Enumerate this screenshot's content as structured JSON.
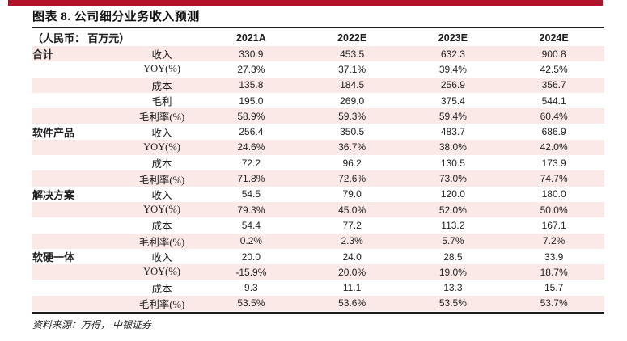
{
  "page": {
    "title": "图表 8. 公司细分业务收入预测",
    "source_note": "资料来源：万得，  中银证券"
  },
  "colors": {
    "accent_bar_red": "#b1122c",
    "row_stripe_pink": "#fbe9e7",
    "rule_black": "#1a1a1a",
    "text": "#1c1c1c"
  },
  "table": {
    "unit_label": "（人民币：  百万元）",
    "columns": [
      "2021A",
      "2022E",
      "2023E",
      "2024E"
    ],
    "groups": [
      {
        "name": "合计",
        "rows": [
          {
            "metric": "收入",
            "values": [
              "330.9",
              "453.5",
              "632.3",
              "900.8"
            ]
          },
          {
            "metric": "YOY(%)",
            "values": [
              "27.3%",
              "37.1%",
              "39.4%",
              "42.5%"
            ]
          },
          {
            "metric": "成本",
            "values": [
              "135.8",
              "184.5",
              "256.9",
              "356.7"
            ]
          },
          {
            "metric": "毛利",
            "values": [
              "195.0",
              "269.0",
              "375.4",
              "544.1"
            ]
          },
          {
            "metric": "毛利率(%)",
            "values": [
              "58.9%",
              "59.3%",
              "59.4%",
              "60.4%"
            ]
          }
        ]
      },
      {
        "name": "软件产品",
        "rows": [
          {
            "metric": "收入",
            "values": [
              "256.4",
              "350.5",
              "483.7",
              "686.9"
            ]
          },
          {
            "metric": "YOY(%)",
            "values": [
              "24.6%",
              "36.7%",
              "38.0%",
              "42.0%"
            ]
          },
          {
            "metric": "成本",
            "values": [
              "72.2",
              "96.2",
              "130.5",
              "173.9"
            ]
          },
          {
            "metric": "毛利率(%)",
            "values": [
              "71.8%",
              "72.6%",
              "73.0%",
              "74.7%"
            ]
          }
        ]
      },
      {
        "name": "解决方案",
        "rows": [
          {
            "metric": "收入",
            "values": [
              "54.5",
              "79.0",
              "120.0",
              "180.0"
            ]
          },
          {
            "metric": "YOY(%)",
            "values": [
              "79.3%",
              "45.0%",
              "52.0%",
              "50.0%"
            ]
          },
          {
            "metric": "成本",
            "values": [
              "54.4",
              "77.2",
              "113.2",
              "167.1"
            ]
          },
          {
            "metric": "毛利率(%)",
            "values": [
              "0.2%",
              "2.3%",
              "5.7%",
              "7.2%"
            ]
          }
        ]
      },
      {
        "name": "软硬一体",
        "rows": [
          {
            "metric": "收入",
            "values": [
              "20.0",
              "24.0",
              "28.5",
              "33.9"
            ]
          },
          {
            "metric": "YOY(%)",
            "values": [
              "-15.9%",
              "20.0%",
              "19.0%",
              "18.7%"
            ]
          },
          {
            "metric": "成本",
            "values": [
              "9.3",
              "11.1",
              "13.3",
              "15.7"
            ]
          },
          {
            "metric": "毛利率(%)",
            "values": [
              "53.5%",
              "53.6%",
              "53.5%",
              "53.7%"
            ]
          }
        ]
      }
    ]
  }
}
